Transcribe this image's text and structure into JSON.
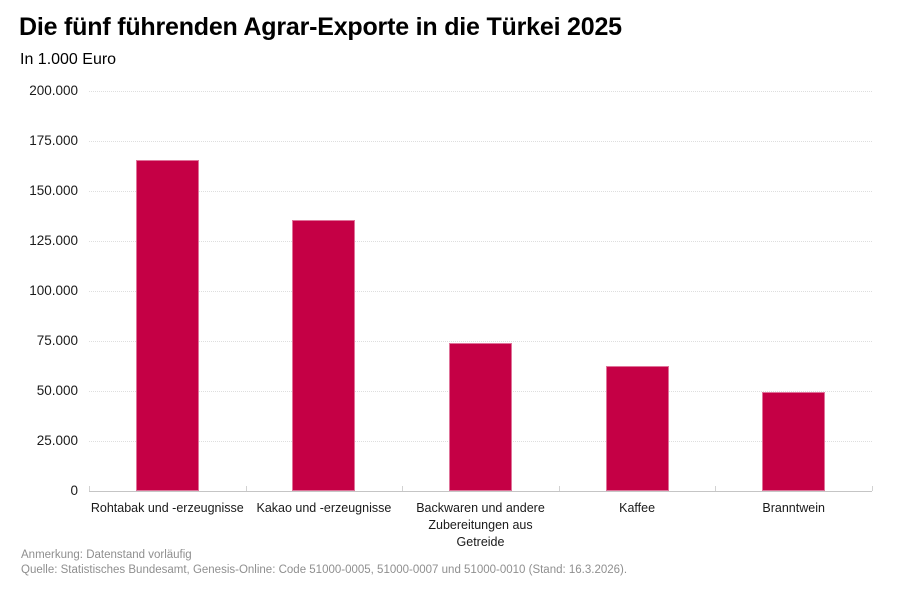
{
  "title": "Die fünf führenden Agrar-Exporte in die Türkei 2025",
  "subtitle": "In 1.000 Euro",
  "footer": {
    "note": "Anmerkung: Datenstand vorläufig",
    "source": "Quelle: Statistisches Bundesamt, Genesis-Online: Code 51000-0005, 51000-0007 und 51000-0010 (Stand: 16.3.2026)."
  },
  "colors": {
    "bar": "#c50045",
    "grid": "#dedede",
    "axis": "#c5c5c5",
    "text": "#1a1a1a",
    "footer_text": "#8f8f8f"
  },
  "chart_data": {
    "type": "bar",
    "title": "Die fünf führenden Agrar-Exporte in die Türkei 2025",
    "subtitle": "In 1.000 Euro",
    "xlabel": "",
    "ylabel": "In 1.000 Euro",
    "categories": [
      "Rohtabak und -erzeugnisse",
      "Kakao und -erzeugnisse",
      "Backwaren und andere Zubereitungen aus Getreide",
      "Kaffee",
      "Branntwein"
    ],
    "category_label_lines": [
      [
        "Rohtabak und -erzeugnisse"
      ],
      [
        "Kakao und -erzeugnisse"
      ],
      [
        "Backwaren und andere",
        "Zubereitungen aus",
        "Getreide"
      ],
      [
        "Kaffee"
      ],
      [
        "Branntwein"
      ]
    ],
    "values": [
      165500,
      135500,
      74000,
      62500,
      49700
    ],
    "ylim": [
      0,
      200000
    ],
    "ytick_step": 25000,
    "yticks": [
      0,
      25000,
      50000,
      75000,
      100000,
      125000,
      150000,
      175000,
      200000
    ],
    "ytick_labels": [
      "0",
      "25.000",
      "50.000",
      "75.000",
      "100.000",
      "125.000",
      "150.000",
      "175.000",
      "200.000"
    ],
    "grid": true,
    "grid_style": "dotted",
    "legend": false,
    "bar_color": "#c50045"
  }
}
